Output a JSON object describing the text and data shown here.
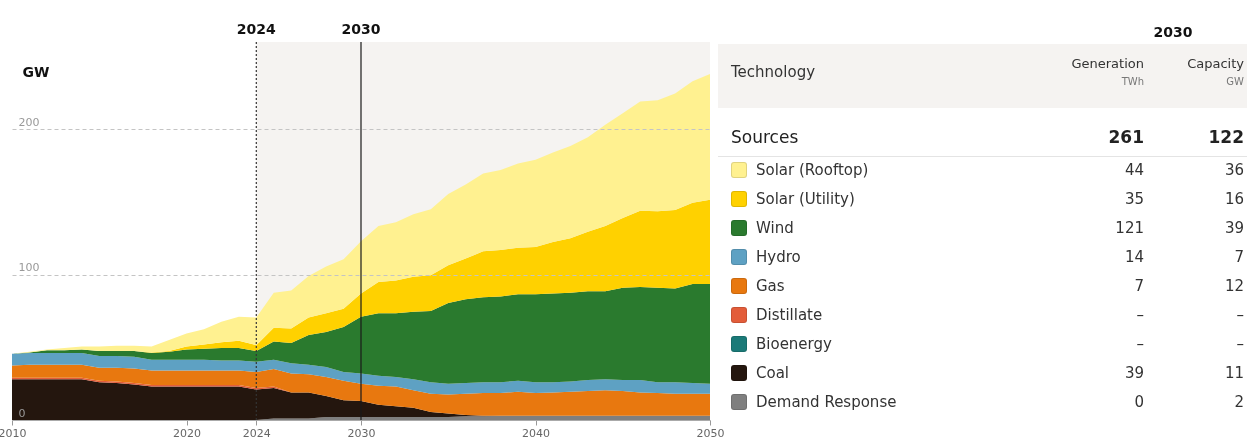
{
  "chart_data": [
    {
      "type": "area",
      "ylabel": "GW",
      "stacked": true,
      "grid": "y",
      "x": [
        2010,
        2011,
        2012,
        2013,
        2014,
        2015,
        2016,
        2017,
        2018,
        2019,
        2020,
        2021,
        2022,
        2023,
        2024,
        2025,
        2026,
        2027,
        2028,
        2029,
        2030,
        2031,
        2032,
        2033,
        2034,
        2035,
        2036,
        2037,
        2038,
        2039,
        2040,
        2041,
        2042,
        2043,
        2044,
        2045,
        2046,
        2047,
        2048,
        2049,
        2050
      ],
      "xlim": [
        2010,
        2050
      ],
      "xticks": [
        2010,
        2020,
        2024,
        2030,
        2040,
        2050
      ],
      "ylim": [
        0,
        260
      ],
      "yticks": [
        0,
        100,
        200
      ],
      "series": [
        {
          "color": "#7f7f7f",
          "values": [
            0,
            0,
            0,
            0,
            0,
            0,
            0,
            0,
            0,
            0,
            0,
            0,
            0,
            0,
            0,
            1,
            1,
            1,
            2,
            2,
            2,
            2,
            2,
            2,
            2,
            2,
            2.5,
            2.5,
            3,
            3,
            3,
            3,
            3,
            3,
            3,
            3,
            3,
            3,
            3,
            3,
            3
          ]
        },
        {
          "color": "#24160e",
          "values": [
            28,
            28,
            28,
            28,
            28,
            26,
            25.5,
            24.5,
            23,
            23,
            23,
            23,
            23,
            23,
            21,
            21,
            18,
            18,
            14.5,
            11.5,
            11,
            8.5,
            7.5,
            6.5,
            3.5,
            2.5,
            1,
            0.5,
            0,
            0,
            0,
            0,
            0,
            0,
            0,
            0,
            0,
            0,
            0,
            0,
            0
          ]
        },
        {
          "color": "#e35d3a",
          "values": [
            1,
            1,
            1,
            1,
            1,
            1,
            1,
            1,
            1,
            1,
            1,
            1,
            1,
            1,
            1,
            1,
            0,
            0,
            0,
            0,
            0,
            0,
            0,
            0,
            0,
            0,
            0,
            0,
            0,
            0,
            0,
            0,
            0,
            0,
            0,
            0,
            0,
            0,
            0,
            0,
            0
          ]
        },
        {
          "color": "#e8780f",
          "values": [
            8.5,
            9,
            9,
            9,
            9,
            9,
            9.5,
            10,
            10,
            10,
            10,
            10,
            10,
            10,
            11,
            12,
            13,
            12.5,
            13,
            13.5,
            12,
            13,
            13.5,
            12,
            12.5,
            13,
            14.5,
            15.5,
            15.5,
            16.5,
            15.5,
            16,
            16.5,
            17,
            17.5,
            17,
            16,
            15.5,
            15,
            15,
            15
          ]
        },
        {
          "color": "#5ea1c3",
          "values": [
            8,
            8,
            8,
            8,
            8,
            8,
            8,
            8,
            7.5,
            7.5,
            7.5,
            7.5,
            7,
            7,
            7,
            6.5,
            7,
            6.5,
            7,
            6,
            7,
            7,
            6.5,
            7.5,
            8,
            7.5,
            7.5,
            7.5,
            7.5,
            7.5,
            7.5,
            7,
            7,
            7.5,
            7.5,
            7.5,
            8.5,
            7.5,
            8,
            7.5,
            7
          ]
        },
        {
          "color": "#2a7a2e",
          "values": [
            0,
            0.5,
            2,
            2,
            2.5,
            3.5,
            3.5,
            4,
            4.5,
            5.5,
            7,
            7.5,
            8.5,
            8.5,
            7.5,
            12.5,
            14,
            20.5,
            24,
            31,
            39,
            43,
            44,
            46.5,
            49,
            55.5,
            57.5,
            58.5,
            59,
            59.5,
            60.5,
            61,
            61,
            61,
            60.5,
            63.5,
            64,
            65,
            64.5,
            68,
            68.5
          ]
        },
        {
          "color": "#ffd100",
          "values": [
            0,
            0,
            0,
            0,
            0,
            0,
            0,
            0,
            0.5,
            0.5,
            2,
            3,
            4,
            5,
            4,
            9.5,
            10,
            12,
            13,
            12.5,
            16,
            21.5,
            22.5,
            24,
            24.5,
            26,
            28,
            31.5,
            32,
            32,
            32.5,
            35.5,
            37.5,
            41,
            45,
            48,
            52.5,
            52.5,
            54,
            56,
            58
          ]
        },
        {
          "color": "#fff190",
          "values": [
            0,
            0.5,
            0.5,
            1.5,
            2,
            3,
            3.5,
            3.5,
            4,
            7.5,
            9,
            10.5,
            14,
            16.5,
            19,
            24,
            26,
            28.5,
            32,
            34,
            36,
            38.5,
            40,
            43,
            45.5,
            49,
            51,
            53.5,
            55,
            58,
            60,
            61.5,
            63.5,
            65,
            69.5,
            72,
            75,
            76.5,
            80,
            83.5,
            86.5
          ]
        }
      ],
      "ref_lines": [
        {
          "axis": "x",
          "value": 2024,
          "label": "2024",
          "line_style": "dotted",
          "color": "#333333"
        },
        {
          "axis": "x",
          "value": 2030,
          "label": "2030",
          "line_style": "solid",
          "color": "#1a1a1a"
        }
      ],
      "bands": [
        {
          "axis": "x",
          "from": 2024,
          "to": 2050,
          "color": "#f5f3f1"
        }
      ]
    },
    {
      "type": "other",
      "title": "2030",
      "xlabel": "Technology",
      "legend_title": "Sources",
      "categories": [
        "Solar (Rooftop)",
        "Solar (Utility)",
        "Wind",
        "Hydro",
        "Gas",
        "Distillate",
        "Bioenergy",
        "Coal",
        "Demand Response"
      ],
      "colors": [
        "#fff190",
        "#ffd100",
        "#2a7a2e",
        "#5ea1c3",
        "#e8780f",
        "#e35d3a",
        "#1b7a78",
        "#24160e",
        "#7f7f7f"
      ],
      "series": [
        {
          "name": "Generation",
          "values": [
            44,
            35,
            121,
            14,
            7,
            null,
            null,
            39,
            0
          ],
          "value_labels": [
            "44",
            "35",
            "121",
            "14",
            "7",
            "–",
            "–",
            "39",
            "0"
          ]
        },
        {
          "name": "Capacity",
          "values": [
            36,
            16,
            39,
            7,
            12,
            null,
            null,
            11,
            2
          ],
          "value_labels": [
            "36",
            "16",
            "39",
            "7",
            "12",
            "–",
            "–",
            "11",
            "2"
          ]
        }
      ],
      "totals": [
        "261",
        "122"
      ],
      "annotations": [
        "TWh",
        "GW"
      ]
    }
  ]
}
